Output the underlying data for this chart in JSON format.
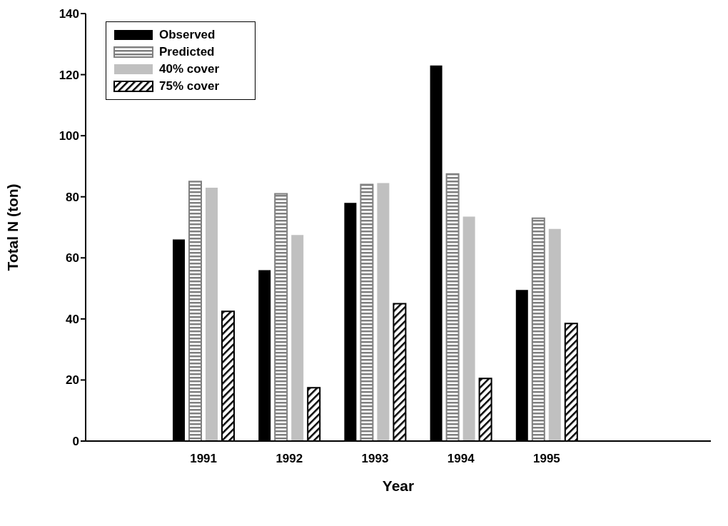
{
  "chart_data": {
    "type": "bar",
    "xlabel": "Year",
    "ylabel": "Total N (ton)",
    "categories": [
      "1991",
      "1992",
      "1993",
      "1994",
      "1995"
    ],
    "series": [
      {
        "name": "Observed",
        "color": "#000000",
        "values": [
          66,
          56,
          78,
          123,
          49.5
        ]
      },
      {
        "name": "Predicted",
        "color": "#808080",
        "values": [
          85,
          81,
          84,
          87.5,
          73
        ]
      },
      {
        "name": "40% cover",
        "color": "#c0c0c0",
        "values": [
          83,
          67.5,
          84.5,
          73.5,
          69.5
        ]
      },
      {
        "name": "75% cover",
        "color": "#000000",
        "values": [
          42.5,
          17.5,
          45,
          20.5,
          38.5
        ]
      }
    ],
    "ylim": [
      0,
      140
    ],
    "yticks": [
      0,
      20,
      40,
      60,
      80,
      100,
      120,
      140
    ],
    "grid": false,
    "legend": "top left"
  }
}
